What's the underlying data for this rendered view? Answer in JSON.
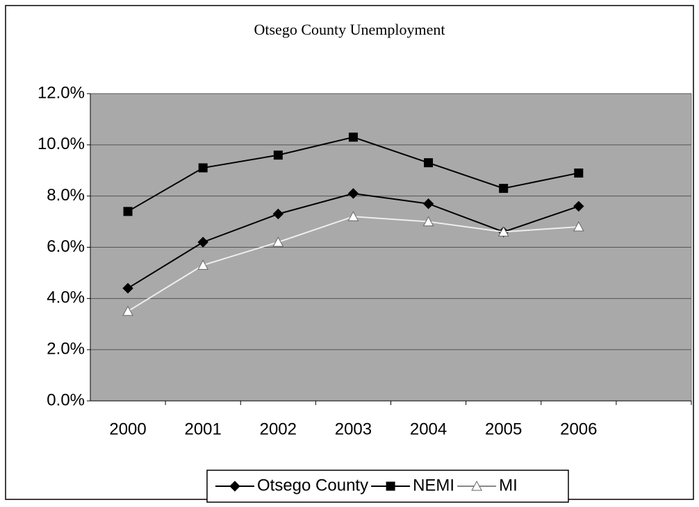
{
  "chart_data": {
    "type": "line",
    "title": "Otsego County Unemployment",
    "categories": [
      "2000",
      "2001",
      "2002",
      "2003",
      "2004",
      "2005",
      "2006",
      null
    ],
    "series": [
      {
        "name": "Otsego County",
        "color": "#000000",
        "marker": "diamond",
        "values": [
          4.4,
          6.2,
          7.3,
          8.1,
          7.7,
          6.6,
          7.6,
          null
        ]
      },
      {
        "name": "NEMI",
        "color": "#000000",
        "marker": "square",
        "values": [
          7.4,
          9.1,
          9.6,
          10.3,
          9.3,
          8.3,
          8.9,
          null
        ]
      },
      {
        "name": "MI",
        "color": "#ffffff",
        "marker": "triangle",
        "values": [
          3.5,
          5.3,
          6.2,
          7.2,
          7.0,
          6.6,
          6.8,
          null
        ]
      }
    ],
    "ylim": [
      0,
      12
    ],
    "yticks": [
      {
        "value": 0,
        "label": "0.0%"
      },
      {
        "value": 2,
        "label": "2.0%"
      },
      {
        "value": 4,
        "label": "4.0%"
      },
      {
        "value": 6,
        "label": "6.0%"
      },
      {
        "value": 8,
        "label": "8.0%"
      },
      {
        "value": 10,
        "label": "10.0%"
      },
      {
        "value": 12,
        "label": "12.0%"
      }
    ],
    "grid": true,
    "legend": "bottom"
  }
}
